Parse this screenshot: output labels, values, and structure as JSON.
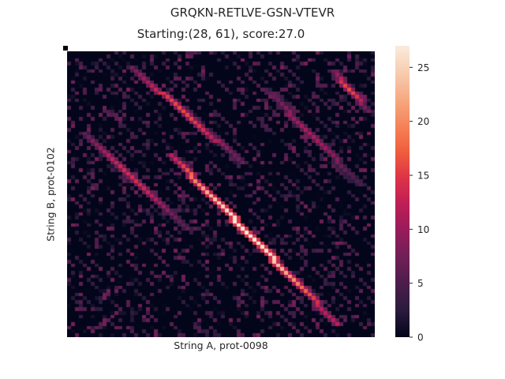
{
  "figure": {
    "suptitle": "GRQKN-RETLVE-GSN-VTEVR",
    "title": "Starting:(28, 61), score:27.0"
  },
  "chart_data": {
    "type": "heatmap",
    "title": "Starting:(28, 61), score:27.0",
    "xlabel": "String A, prot-0098",
    "ylabel": "String B, prot-0102",
    "colormap": "rocket",
    "colorbar": {
      "vmin": 0,
      "vmax": 27,
      "ticks": [
        0,
        5,
        10,
        15,
        20,
        25
      ]
    },
    "grid": false,
    "highlight_cell": {
      "row": 0,
      "col": 0,
      "color": "#000000"
    },
    "diagonal_bands": [
      {
        "note": "main alignment",
        "from": [
          28,
          26
        ],
        "to": [
          74,
          68
        ],
        "peak_value": 27
      },
      {
        "from": [
          4,
          16
        ],
        "to": [
          30,
          44
        ],
        "peak_value": 16
      },
      {
        "from": [
          22,
          4
        ],
        "to": [
          48,
          30
        ],
        "peak_value": 14
      },
      {
        "from": [
          5,
          67
        ],
        "to": [
          16,
          76
        ],
        "peak_value": 16
      },
      {
        "from": [
          10,
          50
        ],
        "to": [
          36,
          74
        ],
        "peak_value": 11
      }
    ]
  },
  "colors": {
    "rocket_stops": [
      "#03051a",
      "#2b1b3d",
      "#4c1d4b",
      "#701f57",
      "#961c5b",
      "#be1e56",
      "#dd3347",
      "#f05e3c",
      "#f5845a",
      "#f6aa82",
      "#f7cdb1",
      "#faebdd"
    ]
  }
}
